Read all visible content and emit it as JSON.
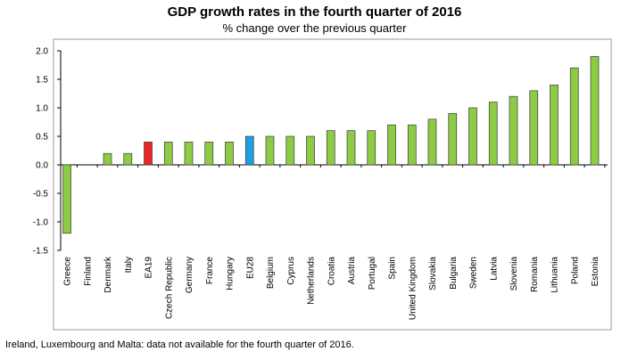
{
  "chart_data": {
    "type": "bar",
    "title": "GDP growth rates in the fourth quarter of 2016",
    "subtitle": "% change over the previous quarter",
    "categories": [
      "Greece",
      "Finland",
      "Denmark",
      "Italy",
      "EA19",
      "Czech Republic",
      "Germany",
      "France",
      "Hungary",
      "EU28",
      "Belgium",
      "Cyprus",
      "Netherlands",
      "Croatia",
      "Austria",
      "Portugal",
      "Spain",
      "United Kingdom",
      "Slovakia",
      "Bulgaria",
      "Sweden",
      "Latvia",
      "Slovenia",
      "Romania",
      "Lithuania",
      "Poland",
      "Estonia"
    ],
    "values": [
      -1.2,
      0.0,
      0.2,
      0.2,
      0.4,
      0.4,
      0.4,
      0.4,
      0.4,
      0.5,
      0.5,
      0.5,
      0.5,
      0.6,
      0.6,
      0.6,
      0.7,
      0.7,
      0.8,
      0.9,
      1.0,
      1.1,
      1.2,
      1.3,
      1.4,
      1.7,
      1.9
    ],
    "highlight": {
      "EA19": "#e8262a",
      "EU28": "#1f9fe0"
    },
    "default_color": "#8dcb45",
    "ylim": [
      -1.5,
      2.0
    ],
    "yticks": [
      "2.0",
      "1.5",
      "1.0",
      "0.5",
      "0.0",
      "-0.5",
      "-1.0",
      "-1.5"
    ],
    "ytick_values": [
      2.0,
      1.5,
      1.0,
      0.5,
      0.0,
      -0.5,
      -1.0,
      -1.5
    ],
    "xlabel": "",
    "ylabel": "",
    "grid": false,
    "legend": "none"
  },
  "footnote": "Ireland, Luxembourg and Malta: data not available for the fourth quarter of 2016."
}
